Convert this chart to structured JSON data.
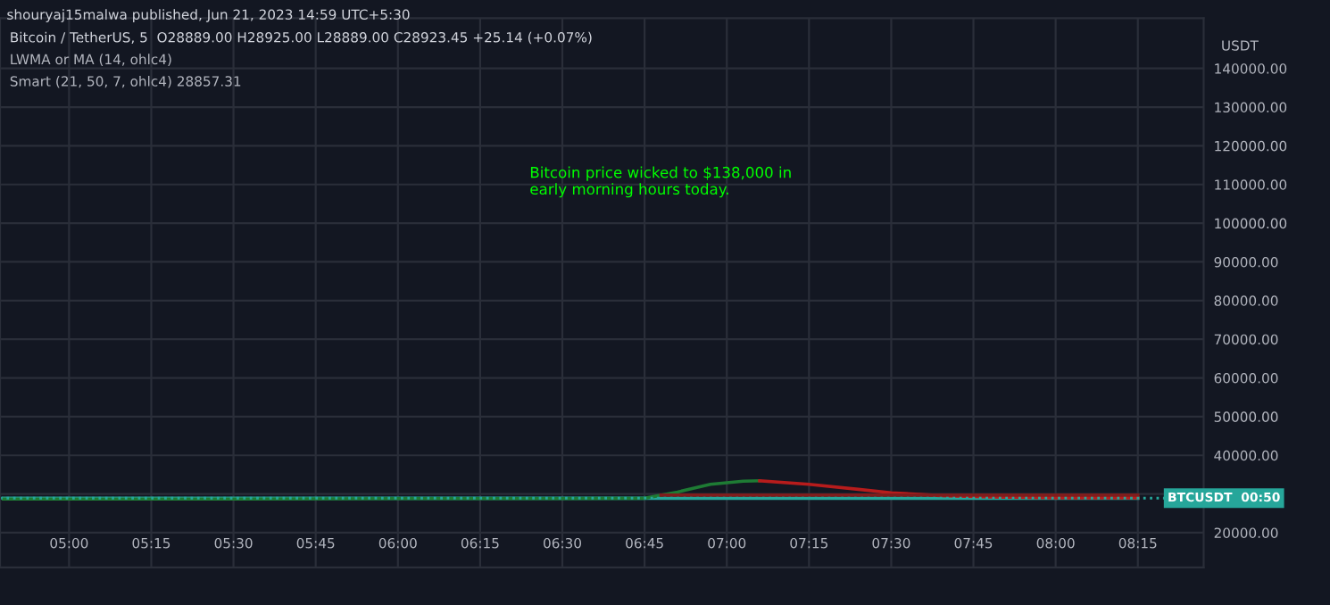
{
  "chart_data": {
    "type": "line",
    "title": "Bitcoin / TetherUS, 5  O28889.00 H28925.00 L28889.00 C28923.45 +25.14 (+0.07%)",
    "subtitle": "shouryaj15malwa published, Jun 21, 2023 14:59 UTC+5:30",
    "ylabel": "USDT",
    "annotations": [
      "LWMA or MA (14, ohlc4)",
      "Smart (21, 50, 7, ohlc4) 28857.31",
      "BTCUSDT  00:50",
      "Bitcoin price wicked to $138,000 in\nearly morning hours today."
    ],
    "series": [
      {
        "color": "#26a69a",
        "x": [
          4.8,
          5.5,
          6.0,
          6.5,
          6.75,
          7.0,
          7.5,
          8.0,
          8.25
        ],
        "values": [
          28900,
          28900,
          28900,
          28900,
          28900,
          28900,
          28900,
          28900,
          28900
        ]
      },
      {
        "color": "#1e7b34",
        "x": [
          4.8,
          5.5,
          6.0,
          6.5,
          6.75,
          6.85,
          6.95,
          7.05,
          7.1
        ],
        "values": [
          28700,
          28700,
          28800,
          28800,
          28900,
          30500,
          32500,
          33300,
          33400
        ]
      },
      {
        "color": "#b71c1c",
        "x": [
          7.1,
          7.25,
          7.4,
          7.5,
          7.65,
          7.8,
          8.0,
          8.25
        ],
        "values": [
          33400,
          32500,
          31200,
          30300,
          29600,
          29200,
          29000,
          29000
        ]
      },
      {
        "color": "#7f1d1d",
        "x": [
          6.8,
          7.5,
          8.25
        ],
        "values": [
          29700,
          29700,
          29700
        ]
      }
    ],
    "xlim": [
      4.79,
      8.45
    ],
    "xticks": [
      {
        "value": 5.0,
        "label": "05:00"
      },
      {
        "value": 5.25,
        "label": "05:15"
      },
      {
        "value": 5.5,
        "label": "05:30"
      },
      {
        "value": 5.75,
        "label": "05:45"
      },
      {
        "value": 6.0,
        "label": "06:00"
      },
      {
        "value": 6.25,
        "label": "06:15"
      },
      {
        "value": 6.5,
        "label": "06:30"
      },
      {
        "value": 6.75,
        "label": "06:45"
      },
      {
        "value": 7.0,
        "label": "07:00"
      },
      {
        "value": 7.25,
        "label": "07:15"
      },
      {
        "value": 7.5,
        "label": "07:30"
      },
      {
        "value": 7.75,
        "label": "07:45"
      },
      {
        "value": 8.0,
        "label": "08:00"
      },
      {
        "value": 8.25,
        "label": "08:15"
      }
    ],
    "ylim": [
      11000,
      153000
    ],
    "yticks": [
      {
        "value": 20000,
        "label": "20000.00"
      },
      {
        "value": 30000,
        "label": null
      },
      {
        "value": 40000,
        "label": "40000.00"
      },
      {
        "value": 50000,
        "label": "50000.00"
      },
      {
        "value": 60000,
        "label": "60000.00"
      },
      {
        "value": 70000,
        "label": "70000.00"
      },
      {
        "value": 80000,
        "label": "80000.00"
      },
      {
        "value": 90000,
        "label": "90000.00"
      },
      {
        "value": 100000,
        "label": "100000.00"
      },
      {
        "value": 110000,
        "label": "110000.00"
      },
      {
        "value": 120000,
        "label": "120000.00"
      },
      {
        "value": 130000,
        "label": "130000.00"
      },
      {
        "value": 140000,
        "label": "140000.00"
      }
    ],
    "grid": true,
    "ref_lines": [
      {
        "axis": "y",
        "value": 28923.45,
        "color": "#26a69a",
        "line_style": "dotted"
      }
    ]
  }
}
